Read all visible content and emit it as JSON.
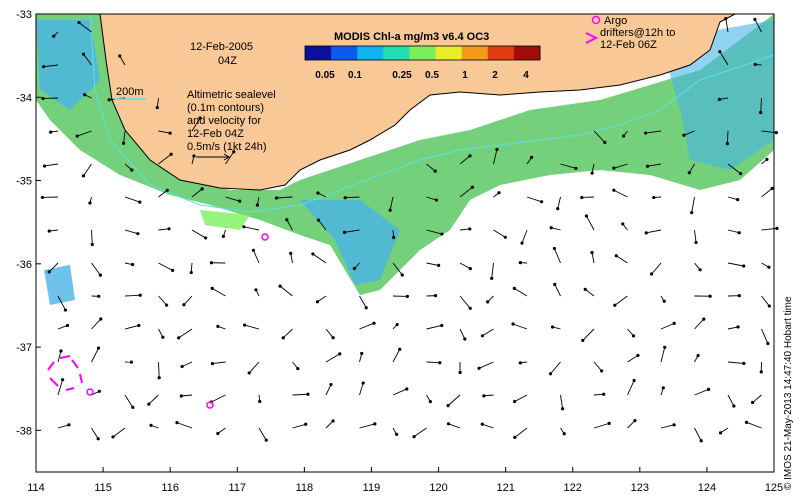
{
  "map": {
    "date": "12-Feb-2005",
    "time": "04Z",
    "contour_label": "200m",
    "altimetry_lines": [
      "Altimetric sealevel",
      "(0.1m contours)",
      "and velocity for",
      "12-Feb 04Z",
      "0.5m/s (1kt 24h)"
    ],
    "argo_lines": [
      "Argo",
      "drifters@12h to",
      "12-Feb 06Z"
    ],
    "credit": "© IMOS 21-May-2013 14:47:40 Hobart time"
  },
  "colorbar": {
    "title": "MODIS Chl-a mg/m3 v6.4 OC3",
    "ticks": [
      "0.05",
      "0.1",
      "0.25",
      "0.5",
      "1",
      "2",
      "4"
    ],
    "colors": [
      "#08109c",
      "#0a5cf0",
      "#10b4f0",
      "#22e0b4",
      "#7cf05a",
      "#e8ec2a",
      "#f49a18",
      "#e03c10",
      "#a00c0c"
    ]
  },
  "axes": {
    "lon_ticks": [
      "114",
      "115",
      "116",
      "117",
      "118",
      "119",
      "120",
      "121",
      "122",
      "123",
      "124",
      "125"
    ],
    "lat_ticks": [
      "-33",
      "-34",
      "-35",
      "-36",
      "-37",
      "-38"
    ],
    "lon_range": [
      114,
      125
    ],
    "lat_range": [
      -38.5,
      -33
    ]
  },
  "colors": {
    "land": "#f8c896",
    "contour": "#5fe0e8",
    "chl_high": "#5cc864",
    "chl_mid": "#48b4e8",
    "argo": "#ff00ff",
    "vector": "#000000"
  }
}
